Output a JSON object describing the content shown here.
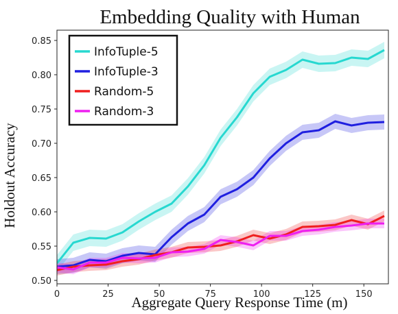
{
  "chart_data": {
    "type": "line",
    "title": "Embedding Quality with Human",
    "xlabel": "Aggregate Query Response Time (m)",
    "ylabel": "Holdout Accuracy",
    "xlim": [
      0,
      162
    ],
    "ylim": [
      0.495,
      0.865
    ],
    "x_ticks": [
      0,
      25,
      50,
      75,
      100,
      125,
      150
    ],
    "y_ticks": [
      0.5,
      0.55,
      0.6,
      0.65,
      0.7,
      0.75,
      0.8,
      0.85
    ],
    "y_tick_labels": [
      "0.50",
      "0.55",
      "0.60",
      "0.65",
      "0.70",
      "0.75",
      "0.80",
      "0.85"
    ],
    "grid": false,
    "legend_position": "top-left",
    "series": [
      {
        "name": "InfoTuple-5",
        "color": "#27d8d0",
        "x": [
          0,
          8,
          16,
          24,
          32,
          40,
          48,
          56,
          64,
          72,
          80,
          88,
          96,
          104,
          112,
          120,
          128,
          136,
          144,
          152,
          160
        ],
        "values": [
          0.525,
          0.555,
          0.562,
          0.561,
          0.57,
          0.586,
          0.6,
          0.612,
          0.637,
          0.668,
          0.708,
          0.738,
          0.773,
          0.797,
          0.807,
          0.822,
          0.816,
          0.817,
          0.825,
          0.823,
          0.836
        ],
        "band": 0.012
      },
      {
        "name": "InfoTuple-3",
        "color": "#1f1fe0",
        "x": [
          0,
          8,
          16,
          24,
          32,
          40,
          48,
          56,
          64,
          72,
          80,
          88,
          96,
          104,
          112,
          120,
          128,
          136,
          144,
          152,
          160
        ],
        "values": [
          0.52,
          0.522,
          0.53,
          0.528,
          0.536,
          0.54,
          0.538,
          0.563,
          0.583,
          0.596,
          0.622,
          0.633,
          0.65,
          0.678,
          0.7,
          0.716,
          0.719,
          0.732,
          0.726,
          0.73,
          0.731
        ],
        "band": 0.011
      },
      {
        "name": "Random-5",
        "color": "#ef1f1f",
        "x": [
          0,
          8,
          16,
          24,
          32,
          40,
          48,
          56,
          64,
          72,
          80,
          88,
          96,
          104,
          112,
          120,
          128,
          136,
          144,
          152,
          160
        ],
        "values": [
          0.515,
          0.52,
          0.522,
          0.523,
          0.528,
          0.531,
          0.537,
          0.541,
          0.548,
          0.549,
          0.551,
          0.557,
          0.566,
          0.561,
          0.567,
          0.578,
          0.579,
          0.581,
          0.588,
          0.582,
          0.594
        ],
        "band": 0.008
      },
      {
        "name": "Random-3",
        "color": "#ee1ff0",
        "x": [
          0,
          8,
          16,
          24,
          32,
          40,
          48,
          56,
          64,
          72,
          80,
          88,
          96,
          104,
          112,
          120,
          128,
          136,
          144,
          152,
          160
        ],
        "values": [
          0.519,
          0.516,
          0.526,
          0.526,
          0.533,
          0.532,
          0.533,
          0.541,
          0.542,
          0.546,
          0.559,
          0.556,
          0.551,
          0.565,
          0.565,
          0.572,
          0.574,
          0.578,
          0.58,
          0.583,
          0.583
        ],
        "band": 0.007
      }
    ]
  }
}
